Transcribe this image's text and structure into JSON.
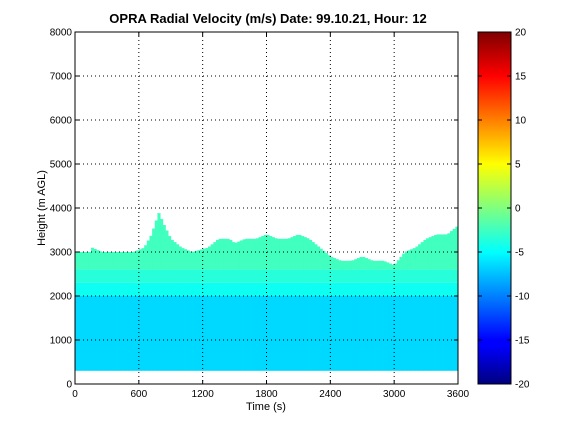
{
  "chart_data": {
    "type": "heatmap",
    "title": "OPRA Radial Velocity (m/s)  Date: 99.10.21, Hour: 12",
    "xlabel": "Time (s)",
    "ylabel": "Height (m AGL)",
    "xlim": [
      0,
      3600
    ],
    "ylim": [
      0,
      8000
    ],
    "xticks": [
      0,
      600,
      1200,
      1800,
      2400,
      3000,
      3600
    ],
    "yticks": [
      0,
      1000,
      2000,
      3000,
      4000,
      5000,
      6000,
      7000,
      8000
    ],
    "grid": true,
    "colormap": "jet",
    "colorbar": {
      "min": -20,
      "max": 20,
      "ticks": [
        -20,
        -15,
        -10,
        -5,
        0,
        5,
        10,
        15,
        20
      ]
    },
    "data_bottom_height": 300,
    "layers": [
      {
        "from": 300,
        "to": 2000,
        "velocity": -6.5
      },
      {
        "from": 2000,
        "to": 2300,
        "velocity": -4.5
      },
      {
        "from": 2300,
        "to": 2600,
        "velocity": -3.5
      },
      {
        "from": 2600,
        "to": "top",
        "velocity": -2.5
      }
    ],
    "echo_top": {
      "time": [
        0,
        150,
        160,
        250,
        450,
        550,
        650,
        720,
        760,
        790,
        820,
        860,
        900,
        1000,
        1100,
        1250,
        1350,
        1450,
        1500,
        1600,
        1700,
        1800,
        1900,
        2000,
        2100,
        2200,
        2300,
        2400,
        2500,
        2600,
        2700,
        2800,
        2900,
        3000,
        3100,
        3200,
        3300,
        3400,
        3500,
        3600
      ],
      "height": [
        3000,
        3000,
        3100,
        3000,
        3000,
        3000,
        3100,
        3400,
        3700,
        3900,
        3700,
        3500,
        3300,
        3100,
        3000,
        3100,
        3300,
        3300,
        3200,
        3300,
        3300,
        3400,
        3300,
        3300,
        3400,
        3300,
        3100,
        2900,
        2800,
        2800,
        2900,
        2800,
        2800,
        2700,
        3000,
        3100,
        3300,
        3400,
        3400,
        3600
      ]
    }
  }
}
